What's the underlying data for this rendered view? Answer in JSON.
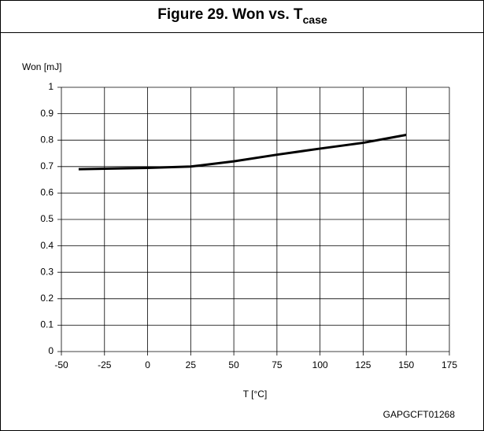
{
  "chart_data": {
    "type": "line",
    "title": "Figure 29. Won vs. T",
    "title_subscript": "case",
    "y_label": "Won [mJ]",
    "x_label": "T [°C]",
    "footnote": "GAPGCFT01268",
    "x": [
      -40,
      0,
      25,
      50,
      75,
      100,
      125,
      150
    ],
    "series": [
      {
        "name": "Won",
        "color": "#000000",
        "values": [
          0.69,
          0.695,
          0.7,
          0.72,
          0.745,
          0.768,
          0.79,
          0.82
        ]
      }
    ],
    "xlim": [
      -50,
      175
    ],
    "xticks": [
      -50,
      -25,
      0,
      25,
      50,
      75,
      100,
      125,
      150,
      175
    ],
    "ylim": [
      0,
      1
    ],
    "yticks": [
      0,
      0.1,
      0.2,
      0.3,
      0.4,
      0.5,
      0.6,
      0.7,
      0.8,
      0.9,
      1
    ],
    "grid": true
  }
}
